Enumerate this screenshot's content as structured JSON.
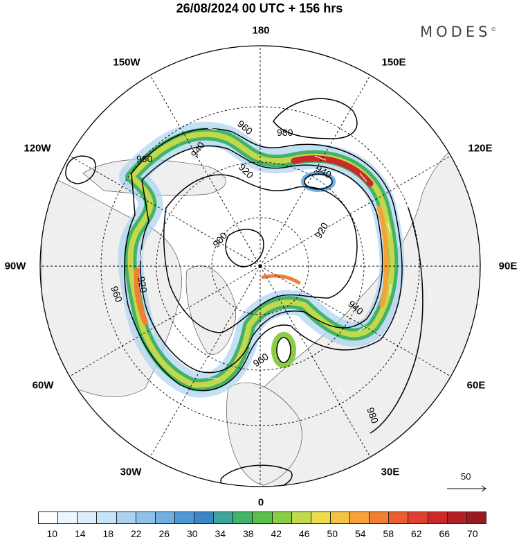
{
  "title": "26/08/2024  00 UTC  + 156 hrs",
  "brand": "MODES",
  "brand_mark": "©",
  "longitude_labels": {
    "lon_180": "180",
    "lon_150e": "150E",
    "lon_120e": "120E",
    "lon_90e": "90E",
    "lon_60e": "60E",
    "lon_30e": "30E",
    "lon_0": "0",
    "lon_30w": "30W",
    "lon_60w": "60W",
    "lon_90w": "90W",
    "lon_120w": "120W",
    "lon_150w": "150W"
  },
  "contour_labels": [
    "900",
    "920",
    "920",
    "920",
    "940",
    "940",
    "940",
    "960",
    "960",
    "960",
    "960",
    "980",
    "980"
  ],
  "reference_vector": "50",
  "colorbar": {
    "colors": [
      "#ffffff",
      "#eef6fc",
      "#dceefa",
      "#c6e3f7",
      "#a9d3f1",
      "#8cc2ea",
      "#6fafe2",
      "#4f98d6",
      "#3a86c6",
      "#3fa59c",
      "#43b26a",
      "#58bf4a",
      "#8bcc46",
      "#c3d94a",
      "#eedc4f",
      "#f6c243",
      "#f5a23a",
      "#f07f33",
      "#e95e2e",
      "#df3f2c",
      "#cc2a2a",
      "#b21f24",
      "#991a1f"
    ],
    "labels": [
      "10",
      "14",
      "18",
      "22",
      "26",
      "30",
      "34",
      "38",
      "42",
      "46",
      "50",
      "54",
      "58",
      "62",
      "66",
      "70"
    ]
  },
  "map": {
    "ocean_color": "#ffffff",
    "land_color": "#efefef",
    "jet_color": "#2f6fbf"
  }
}
